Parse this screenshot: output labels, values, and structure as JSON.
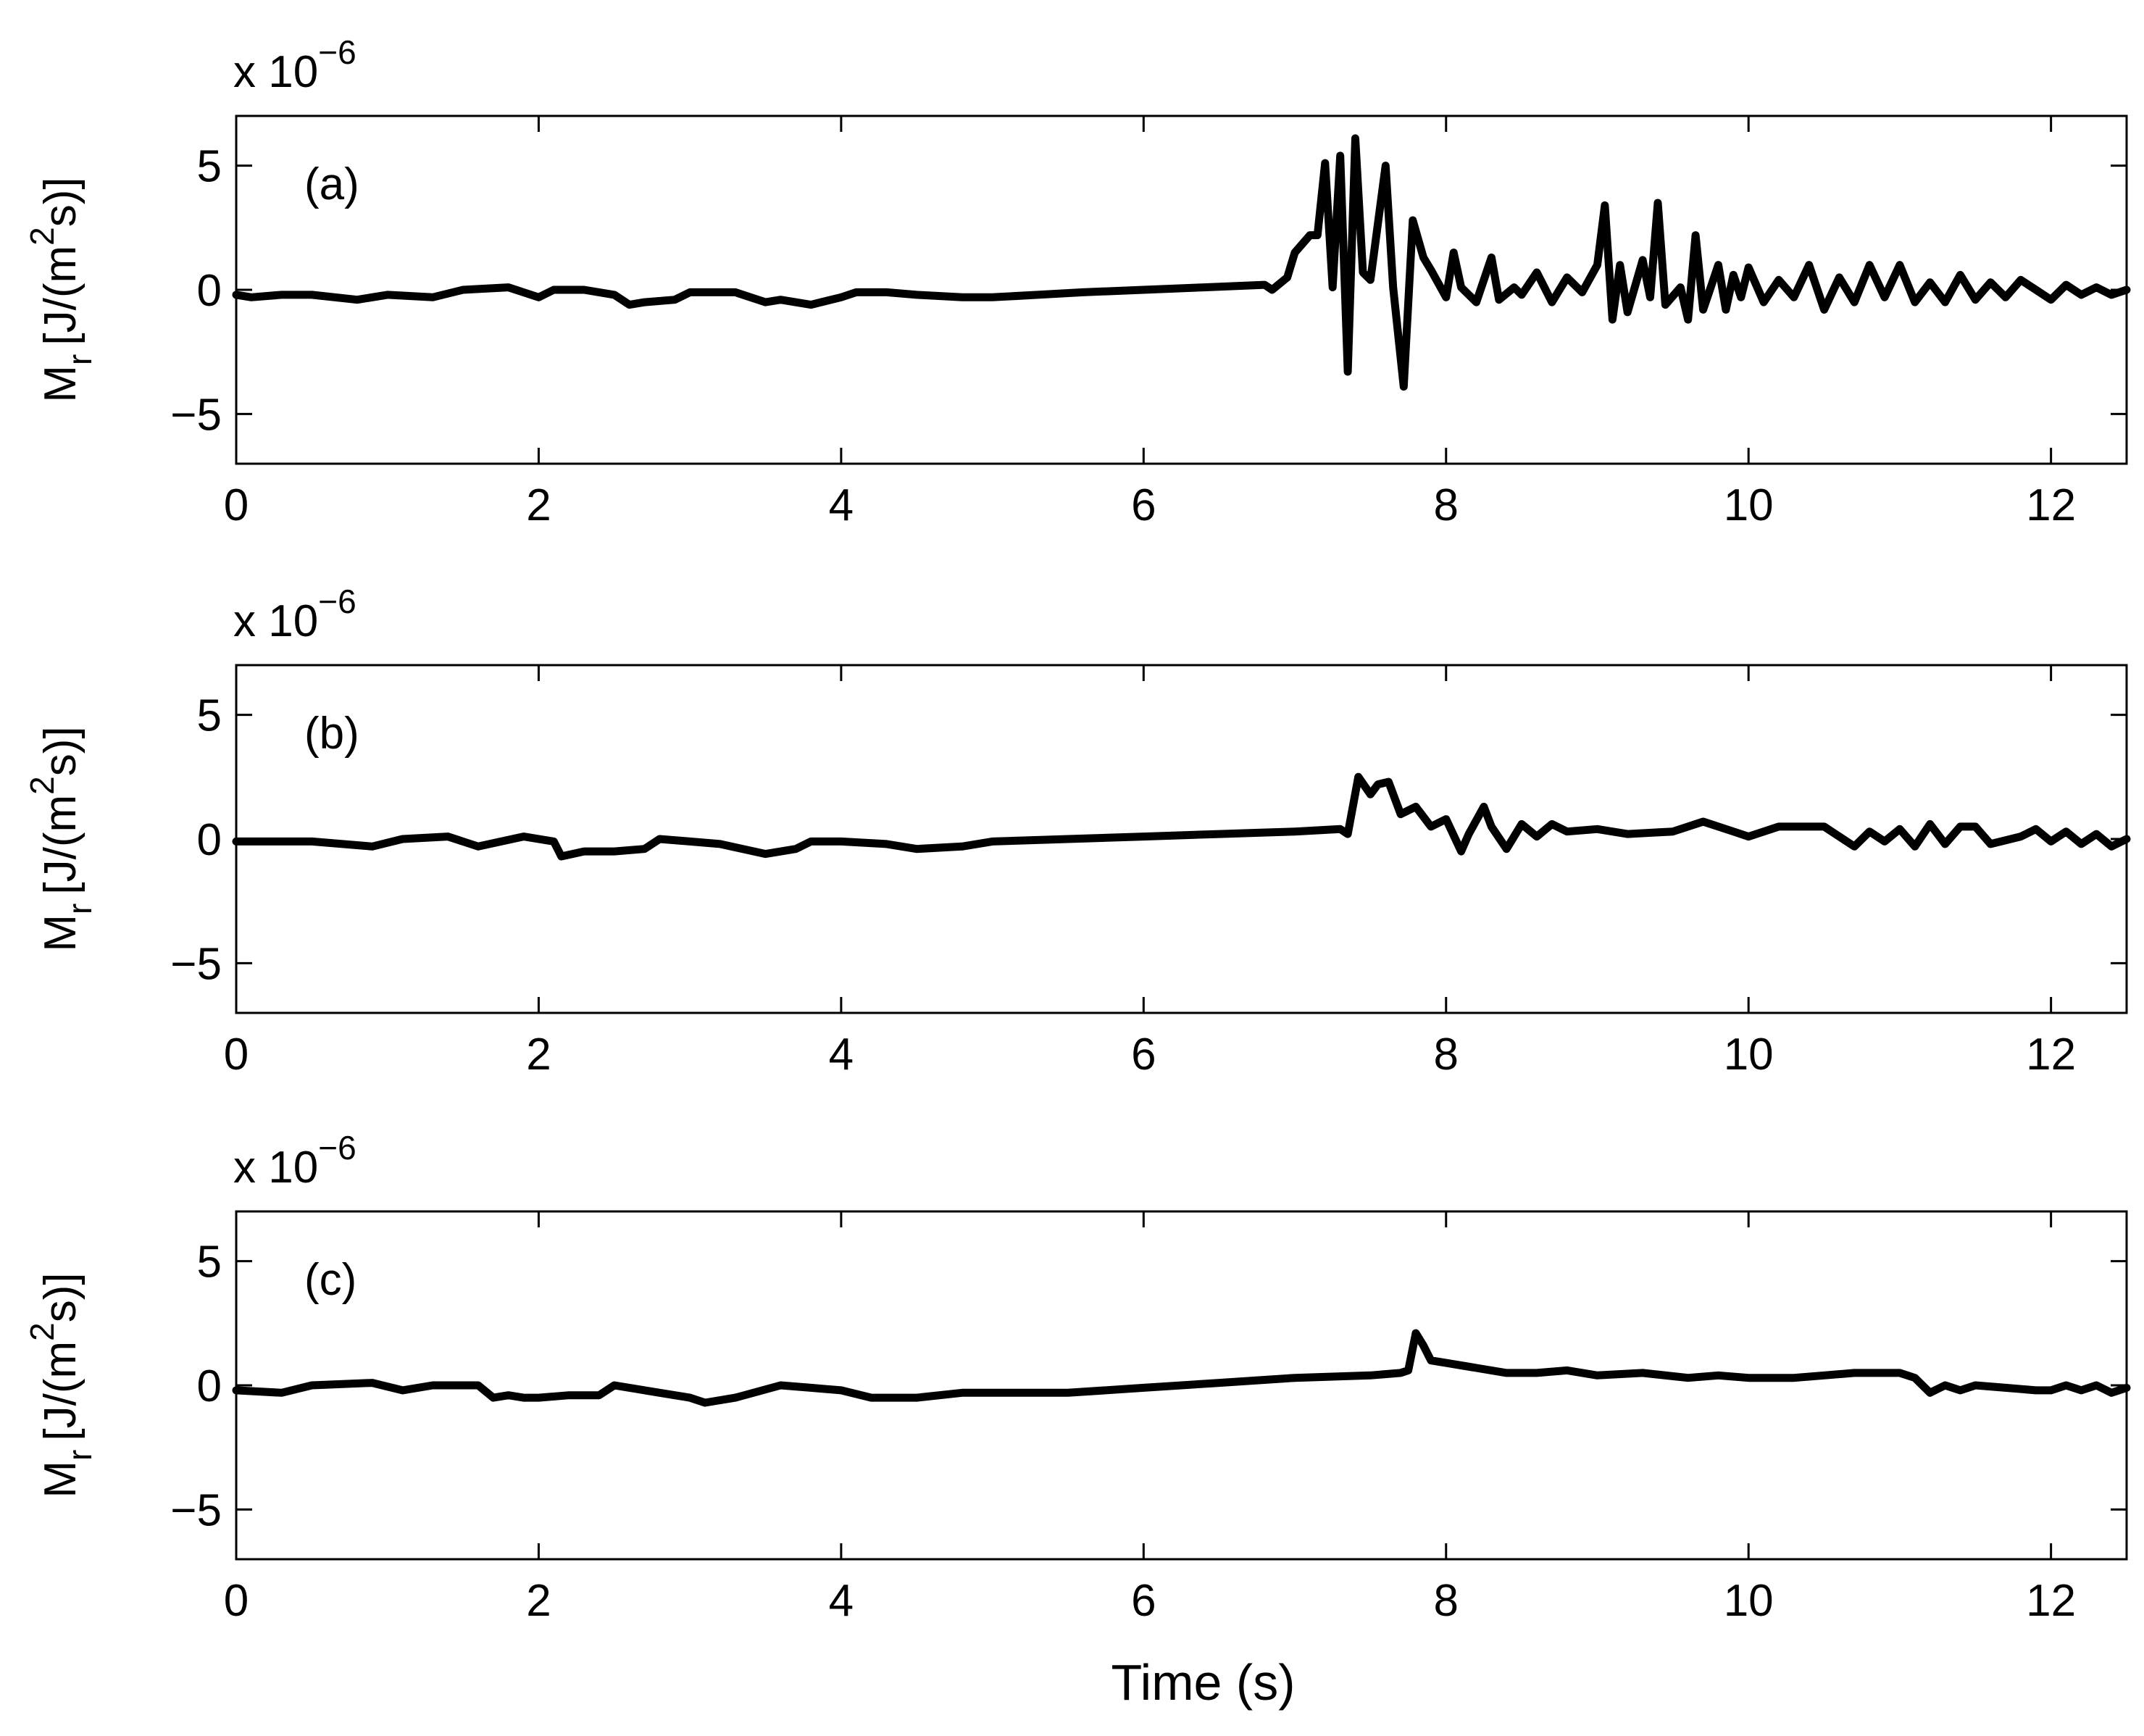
{
  "chart_data": [
    {
      "type": "line",
      "annotation": "(a)",
      "ylabel": "M",
      "ylabel_sub": "r",
      "ylabel_unit": "[J/(m",
      "ylabel_sup": "2",
      "ylabel_tail": "s)]",
      "scale_prefix": "x 10",
      "scale_exponent": "−6",
      "xlim": [
        0,
        12.5
      ],
      "ylim": [
        -7,
        7
      ],
      "xticks": [
        0,
        2,
        4,
        6,
        8,
        10,
        12
      ],
      "yticks": [
        -5,
        0,
        5
      ],
      "xtick_labels": [
        "0",
        "2",
        "4",
        "6",
        "8",
        "10",
        "12"
      ],
      "ytick_labels": [
        "−5",
        "0",
        "5"
      ],
      "x": [
        0,
        0.1,
        0.3,
        0.5,
        0.8,
        1.0,
        1.3,
        1.5,
        1.8,
        2.0,
        2.1,
        2.3,
        2.5,
        2.6,
        2.7,
        2.9,
        3.0,
        3.1,
        3.3,
        3.5,
        3.6,
        3.8,
        4.0,
        4.1,
        4.3,
        4.5,
        4.8,
        5.0,
        5.3,
        5.6,
        6.0,
        6.4,
        6.8,
        6.85,
        6.95,
        7.0,
        7.1,
        7.15,
        7.2,
        7.25,
        7.3,
        7.35,
        7.4,
        7.45,
        7.5,
        7.6,
        7.65,
        7.72,
        7.78,
        7.85,
        7.9,
        8.0,
        8.05,
        8.1,
        8.2,
        8.3,
        8.35,
        8.45,
        8.5,
        8.6,
        8.7,
        8.8,
        8.9,
        9.0,
        9.05,
        9.1,
        9.15,
        9.2,
        9.3,
        9.35,
        9.4,
        9.45,
        9.55,
        9.6,
        9.65,
        9.7,
        9.8,
        9.85,
        9.9,
        9.95,
        10.0,
        10.1,
        10.2,
        10.3,
        10.4,
        10.5,
        10.6,
        10.7,
        10.8,
        10.9,
        11.0,
        11.1,
        11.2,
        11.3,
        11.4,
        11.5,
        11.6,
        11.7,
        11.8,
        11.9,
        12.0,
        12.1,
        12.2,
        12.3,
        12.4,
        12.5
      ],
      "y": [
        -0.2,
        -0.3,
        -0.2,
        -0.2,
        -0.4,
        -0.2,
        -0.3,
        0.0,
        0.1,
        -0.3,
        0.0,
        0.0,
        -0.2,
        -0.6,
        -0.5,
        -0.4,
        -0.1,
        -0.1,
        -0.1,
        -0.5,
        -0.4,
        -0.6,
        -0.3,
        -0.1,
        -0.1,
        -0.2,
        -0.3,
        -0.3,
        -0.2,
        -0.1,
        0.0,
        0.1,
        0.2,
        0.0,
        0.5,
        1.5,
        2.2,
        2.2,
        5.1,
        0.1,
        5.4,
        -3.3,
        6.1,
        0.7,
        0.4,
        5.0,
        0.1,
        -3.9,
        2.8,
        1.3,
        0.8,
        -0.3,
        1.5,
        0.1,
        -0.5,
        1.3,
        -0.4,
        0.1,
        -0.2,
        0.7,
        -0.5,
        0.5,
        -0.1,
        1.0,
        3.4,
        -1.2,
        1.0,
        -0.9,
        1.2,
        -0.3,
        3.5,
        -0.6,
        0.1,
        -1.2,
        2.2,
        -0.8,
        1.0,
        -0.8,
        0.6,
        -0.3,
        0.9,
        -0.5,
        0.4,
        -0.3,
        1.0,
        -0.8,
        0.5,
        -0.5,
        1.0,
        -0.3,
        1.0,
        -0.5,
        0.3,
        -0.5,
        0.6,
        -0.4,
        0.3,
        -0.3,
        0.4,
        0.0,
        -0.4,
        0.2,
        -0.2,
        0.1,
        -0.2,
        0.0
      ]
    },
    {
      "type": "line",
      "annotation": "(b)",
      "ylabel": "M",
      "ylabel_sub": "r",
      "ylabel_unit": "[J/(m",
      "ylabel_sup": "2",
      "ylabel_tail": "s)]",
      "scale_prefix": "x 10",
      "scale_exponent": "−6",
      "xlim": [
        0,
        12.5
      ],
      "ylim": [
        -7,
        7
      ],
      "xticks": [
        0,
        2,
        4,
        6,
        8,
        10,
        12
      ],
      "yticks": [
        -5,
        0,
        5
      ],
      "xtick_labels": [
        "0",
        "2",
        "4",
        "6",
        "8",
        "10",
        "12"
      ],
      "ytick_labels": [
        "−5",
        "0",
        "5"
      ],
      "x": [
        0,
        0.5,
        0.9,
        1.1,
        1.4,
        1.6,
        1.9,
        2.1,
        2.15,
        2.3,
        2.5,
        2.7,
        2.8,
        3.0,
        3.2,
        3.5,
        3.7,
        3.8,
        4.0,
        4.3,
        4.5,
        4.8,
        5.0,
        5.5,
        6.0,
        6.5,
        7.0,
        7.3,
        7.35,
        7.42,
        7.5,
        7.55,
        7.62,
        7.7,
        7.8,
        7.9,
        8.0,
        8.1,
        8.15,
        8.25,
        8.3,
        8.4,
        8.5,
        8.6,
        8.7,
        8.8,
        9.0,
        9.2,
        9.5,
        9.7,
        9.9,
        10.0,
        10.2,
        10.5,
        10.7,
        10.8,
        10.9,
        11.0,
        11.1,
        11.2,
        11.3,
        11.4,
        11.5,
        11.6,
        11.8,
        11.9,
        12.0,
        12.1,
        12.2,
        12.3,
        12.4,
        12.5
      ],
      "y": [
        -0.1,
        -0.1,
        -0.3,
        0.0,
        0.1,
        -0.3,
        0.1,
        -0.1,
        -0.7,
        -0.5,
        -0.5,
        -0.4,
        0.0,
        -0.1,
        -0.2,
        -0.6,
        -0.4,
        -0.1,
        -0.1,
        -0.2,
        -0.4,
        -0.3,
        -0.1,
        0.0,
        0.1,
        0.2,
        0.3,
        0.4,
        0.2,
        2.5,
        1.8,
        2.2,
        2.3,
        1.0,
        1.3,
        0.5,
        0.8,
        -0.5,
        0.2,
        1.3,
        0.5,
        -0.4,
        0.6,
        0.1,
        0.6,
        0.3,
        0.4,
        0.2,
        0.3,
        0.7,
        0.3,
        0.1,
        0.5,
        0.5,
        -0.3,
        0.3,
        -0.1,
        0.4,
        -0.3,
        0.6,
        -0.2,
        0.5,
        0.5,
        -0.2,
        0.1,
        0.4,
        -0.1,
        0.3,
        -0.2,
        0.2,
        -0.3,
        0.0
      ]
    },
    {
      "type": "line",
      "annotation": "(c)",
      "ylabel": "M",
      "ylabel_sub": "r",
      "ylabel_unit": "[J/(m",
      "ylabel_sup": "2",
      "ylabel_tail": "s)]",
      "scale_prefix": "x 10",
      "scale_exponent": "−6",
      "xlabel": "Time (s)",
      "xlim": [
        0,
        12.5
      ],
      "ylim": [
        -7,
        7
      ],
      "xticks": [
        0,
        2,
        4,
        6,
        8,
        10,
        12
      ],
      "yticks": [
        -5,
        0,
        5
      ],
      "xtick_labels": [
        "0",
        "2",
        "4",
        "6",
        "8",
        "10",
        "12"
      ],
      "ytick_labels": [
        "−5",
        "0",
        "5"
      ],
      "x": [
        0,
        0.3,
        0.5,
        0.9,
        1.1,
        1.3,
        1.6,
        1.7,
        1.8,
        1.9,
        2.0,
        2.2,
        2.4,
        2.5,
        2.8,
        3.0,
        3.1,
        3.3,
        3.6,
        3.8,
        4.0,
        4.2,
        4.5,
        4.8,
        5.2,
        5.5,
        6.0,
        6.5,
        7.0,
        7.5,
        7.7,
        7.75,
        7.8,
        7.85,
        7.9,
        8.0,
        8.2,
        8.4,
        8.6,
        8.8,
        9.0,
        9.3,
        9.6,
        9.8,
        10.0,
        10.3,
        10.5,
        10.7,
        10.9,
        11.0,
        11.1,
        11.2,
        11.3,
        11.4,
        11.5,
        11.7,
        11.9,
        12.0,
        12.1,
        12.2,
        12.3,
        12.4,
        12.5
      ],
      "y": [
        -0.2,
        -0.3,
        0.0,
        0.1,
        -0.2,
        0.0,
        0.0,
        -0.5,
        -0.4,
        -0.5,
        -0.5,
        -0.4,
        -0.4,
        0.0,
        -0.3,
        -0.5,
        -0.7,
        -0.5,
        0.0,
        -0.1,
        -0.2,
        -0.5,
        -0.5,
        -0.3,
        -0.3,
        -0.3,
        -0.1,
        0.1,
        0.3,
        0.4,
        0.5,
        0.6,
        2.1,
        1.6,
        1.0,
        0.9,
        0.7,
        0.5,
        0.5,
        0.6,
        0.4,
        0.5,
        0.3,
        0.4,
        0.3,
        0.3,
        0.4,
        0.5,
        0.5,
        0.5,
        0.3,
        -0.3,
        0.0,
        -0.2,
        0.0,
        -0.1,
        -0.2,
        -0.2,
        0.0,
        -0.2,
        0.0,
        -0.3,
        -0.1
      ]
    }
  ]
}
